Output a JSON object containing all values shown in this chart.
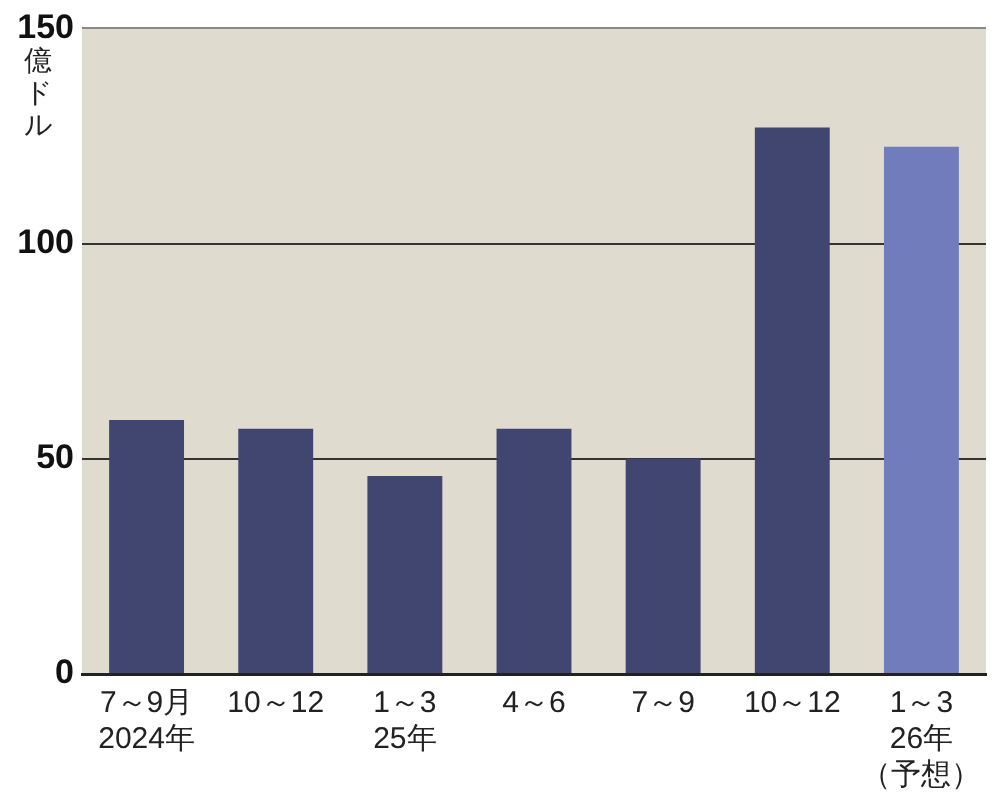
{
  "chart_data": {
    "type": "bar",
    "ylabel": "億ドル",
    "categories": [
      "7～9月\n2024年",
      "10～12",
      "1～3\n25年",
      "4～6",
      "7～9",
      "10～12",
      "1～3\n26年（予想）"
    ],
    "values": [
      59,
      57,
      46,
      57,
      50,
      127,
      122.5
    ],
    "colors": [
      "#40466f",
      "#40466f",
      "#40466f",
      "#40466f",
      "#40466f",
      "#40466f",
      "#717cbc"
    ],
    "ylim": [
      0,
      150
    ],
    "yticks": [
      0,
      50,
      100,
      150
    ],
    "grid": "y",
    "legend": false
  }
}
